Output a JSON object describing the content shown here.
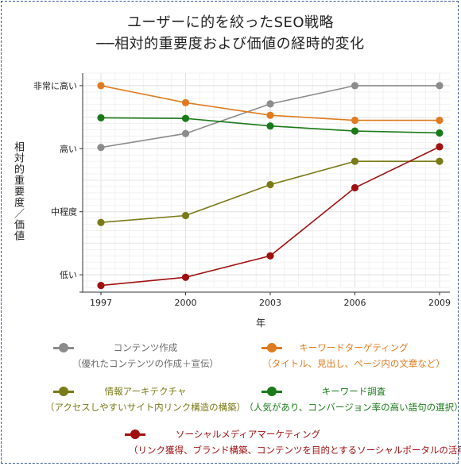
{
  "chart_data": {
    "type": "line",
    "title_line1": "ユーザーに的を絞ったSEO戦略",
    "title_line2": "──相対的重要度および価値の経時的変化",
    "xlabel": "年",
    "ylabel": "相対的重要度／価値",
    "x": [
      1997,
      2000,
      2003,
      2006,
      2009
    ],
    "x_tick_labels": [
      "1997",
      "2000",
      "2003",
      "2006",
      "2009"
    ],
    "y_tick_labels": [
      "低い",
      "中程度",
      "高い",
      "非常に高い"
    ],
    "y_tick_values": [
      1,
      2,
      3,
      4
    ],
    "ylim": [
      0.8,
      4.2
    ],
    "grid": true,
    "series": [
      {
        "name": "コンテンツ作成",
        "description": "（優れたコンテンツの作成＋宣伝）",
        "color": "#8c8c8c",
        "values": [
          3.02,
          3.24,
          3.71,
          4.0,
          4.0
        ]
      },
      {
        "name": "キーワードターゲティング",
        "description": "（タイトル、見出し、ページ内の文章など）",
        "color": "#e07b1f",
        "values": [
          4.0,
          3.73,
          3.53,
          3.45,
          3.45
        ]
      },
      {
        "name": "情報アーキテクチャ",
        "description": "（アクセスしやすいサイト内リンク構造の構築）",
        "color": "#7a7a18",
        "values": [
          1.83,
          1.94,
          2.43,
          2.8,
          2.8
        ]
      },
      {
        "name": "キーワード調査",
        "description": "（人気があり、コンバージョン率の高い語句の選択）",
        "color": "#1a7a1a",
        "values": [
          3.49,
          3.48,
          3.36,
          3.28,
          3.25
        ]
      },
      {
        "name": "ソーシャルメディアマーケティング",
        "description": "（リンク獲得、ブランド構築、コンテンツを目的とするソーシャルポータルの活用）",
        "color": "#a01010",
        "values": [
          0.83,
          0.96,
          1.3,
          2.38,
          3.03
        ]
      }
    ]
  }
}
